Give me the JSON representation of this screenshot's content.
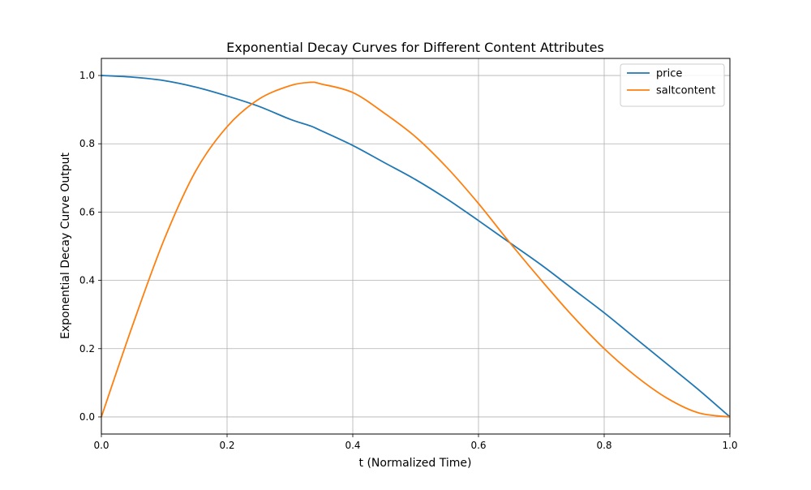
{
  "chart_data": {
    "type": "line",
    "title": "Exponential Decay Curves for Different Content Attributes",
    "xlabel": "t (Normalized Time)",
    "ylabel": "Exponential Decay Curve Output",
    "xlim": [
      0.0,
      1.0
    ],
    "ylim": [
      -0.05,
      1.05
    ],
    "x_ticks": [
      "0.0",
      "0.2",
      "0.4",
      "0.6",
      "0.8",
      "1.0"
    ],
    "y_ticks": [
      "0.0",
      "0.2",
      "0.4",
      "0.6",
      "0.8",
      "1.0"
    ],
    "grid": true,
    "legend_position": "top-right",
    "x": [
      0.0,
      0.05,
      0.1,
      0.15,
      0.2,
      0.25,
      0.3,
      0.333,
      0.35,
      0.4,
      0.45,
      0.5,
      0.55,
      0.6,
      0.65,
      0.7,
      0.75,
      0.8,
      0.85,
      0.9,
      0.95,
      1.0
    ],
    "series": [
      {
        "name": "price",
        "color": "#1f77b4",
        "values": [
          1.0,
          0.995,
          0.985,
          0.966,
          0.94,
          0.91,
          0.872,
          0.852,
          0.838,
          0.795,
          0.745,
          0.695,
          0.638,
          0.575,
          0.51,
          0.445,
          0.375,
          0.305,
          0.23,
          0.155,
          0.08,
          0.0
        ]
      },
      {
        "name": "saltcontent",
        "color": "#ff7f0e",
        "values": [
          0.0,
          0.27,
          0.52,
          0.72,
          0.85,
          0.93,
          0.97,
          0.98,
          0.975,
          0.95,
          0.89,
          0.82,
          0.73,
          0.625,
          0.51,
          0.4,
          0.295,
          0.2,
          0.12,
          0.055,
          0.012,
          0.0
        ]
      }
    ]
  }
}
